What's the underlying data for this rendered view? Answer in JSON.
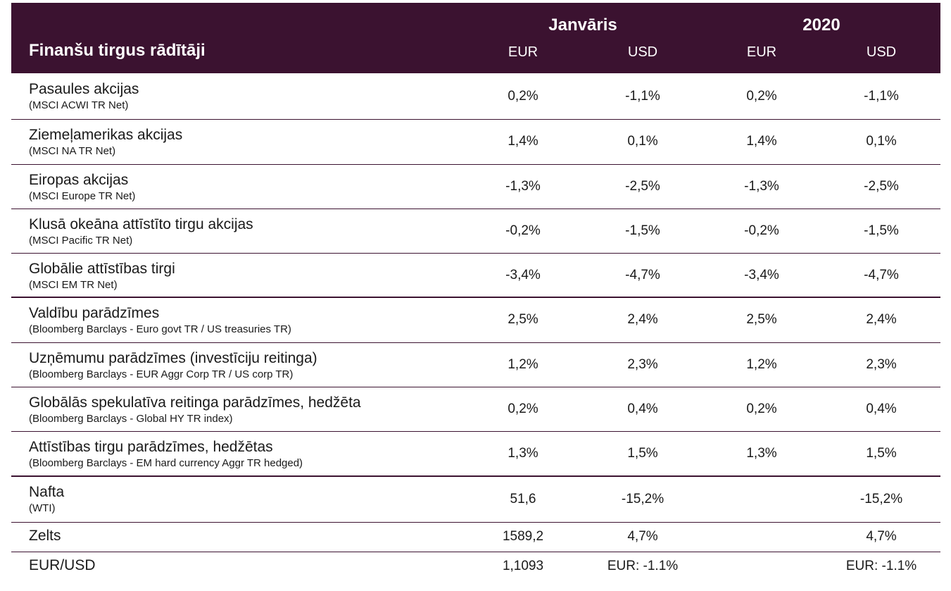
{
  "table": {
    "title": "Finanšu tirgus rādītāji",
    "groups": [
      "Janvāris",
      "2020"
    ],
    "columns": [
      "EUR",
      "USD",
      "EUR",
      "USD"
    ],
    "rows": [
      {
        "name": "Pasaules akcijas",
        "sub": "(MSCI ACWI TR Net)",
        "cells": [
          "0,2%",
          "-1,1%",
          "0,2%",
          "-1,1%"
        ]
      },
      {
        "name": "Ziemeļamerikas akcijas",
        "sub": "(MSCI NA TR Net)",
        "cells": [
          "1,4%",
          "0,1%",
          "1,4%",
          "0,1%"
        ]
      },
      {
        "name": "Eiropas akcijas",
        "sub": "(MSCI Europe TR Net)",
        "cells": [
          "-1,3%",
          "-2,5%",
          "-1,3%",
          "-2,5%"
        ]
      },
      {
        "name": "Klusā okeāna attīstīto tirgu akcijas",
        "sub": "(MSCI Pacific TR Net)",
        "cells": [
          "-0,2%",
          "-1,5%",
          "-0,2%",
          "-1,5%"
        ]
      },
      {
        "name": "Globālie attīstības tirgi",
        "sub": "(MSCI EM TR Net)",
        "cells": [
          "-3,4%",
          "-4,7%",
          "-3,4%",
          "-4,7%"
        ]
      },
      {
        "name": "Valdību parādzīmes",
        "sub": "(Bloomberg Barclays - Euro govt TR / US treasuries TR)",
        "cells": [
          "2,5%",
          "2,4%",
          "2,5%",
          "2,4%"
        ]
      },
      {
        "name": "Uzņēmumu parādzīmes (investīciju reitinga)",
        "sub": "(Bloomberg Barclays - EUR Aggr Corp TR / US corp TR)",
        "cells": [
          "1,2%",
          "2,3%",
          "1,2%",
          "2,3%"
        ]
      },
      {
        "name": "Globālās spekulatīva reitinga parādzīmes, hedžēta",
        "sub": "(Bloomberg Barclays - Global HY TR index)",
        "cells": [
          "0,2%",
          "0,4%",
          "0,2%",
          "0,4%"
        ]
      },
      {
        "name": "Attīstības tirgu parādzīmes, hedžētas",
        "sub": "(Bloomberg Barclays - EM hard currency Aggr TR hedged)",
        "cells": [
          "1,3%",
          "1,5%",
          "1,3%",
          "1,5%"
        ]
      },
      {
        "name": "Nafta",
        "sub": "(WTI)",
        "cells": [
          "51,6",
          "-15,2%",
          null,
          "-15,2%"
        ]
      },
      {
        "name": "Zelts",
        "cells": [
          "1589,2",
          "4,7%",
          null,
          "4,7%"
        ]
      },
      {
        "name": "EUR/USD",
        "cells": [
          "1,1093",
          "EUR: -1.1%",
          null,
          "EUR: -1.1%"
        ]
      }
    ]
  }
}
